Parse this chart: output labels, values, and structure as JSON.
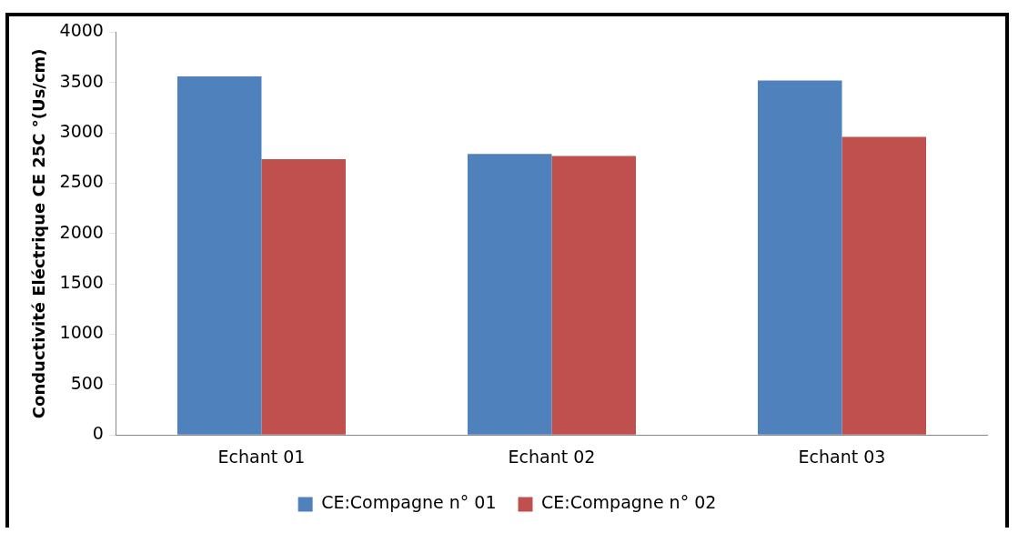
{
  "chart_data": {
    "type": "bar",
    "ylabel": "Conductivité Eléctrique CE 25C °(Us/cm)",
    "categories": [
      "Echant 01",
      "Echant 02",
      "Echant 03"
    ],
    "series": [
      {
        "name": "CE:Compagne n° 01",
        "color": "#4f81bd",
        "values": [
          3560,
          2790,
          3520
        ]
      },
      {
        "name": "CE:Compagne n° 02",
        "color": "#c0504d",
        "values": [
          2740,
          2770,
          2960
        ]
      }
    ],
    "ylim": [
      0,
      4000
    ],
    "yticks": [
      0,
      500,
      1000,
      1500,
      2000,
      2500,
      3000,
      3500,
      4000
    ],
    "grid": false,
    "legend": "bottom"
  }
}
